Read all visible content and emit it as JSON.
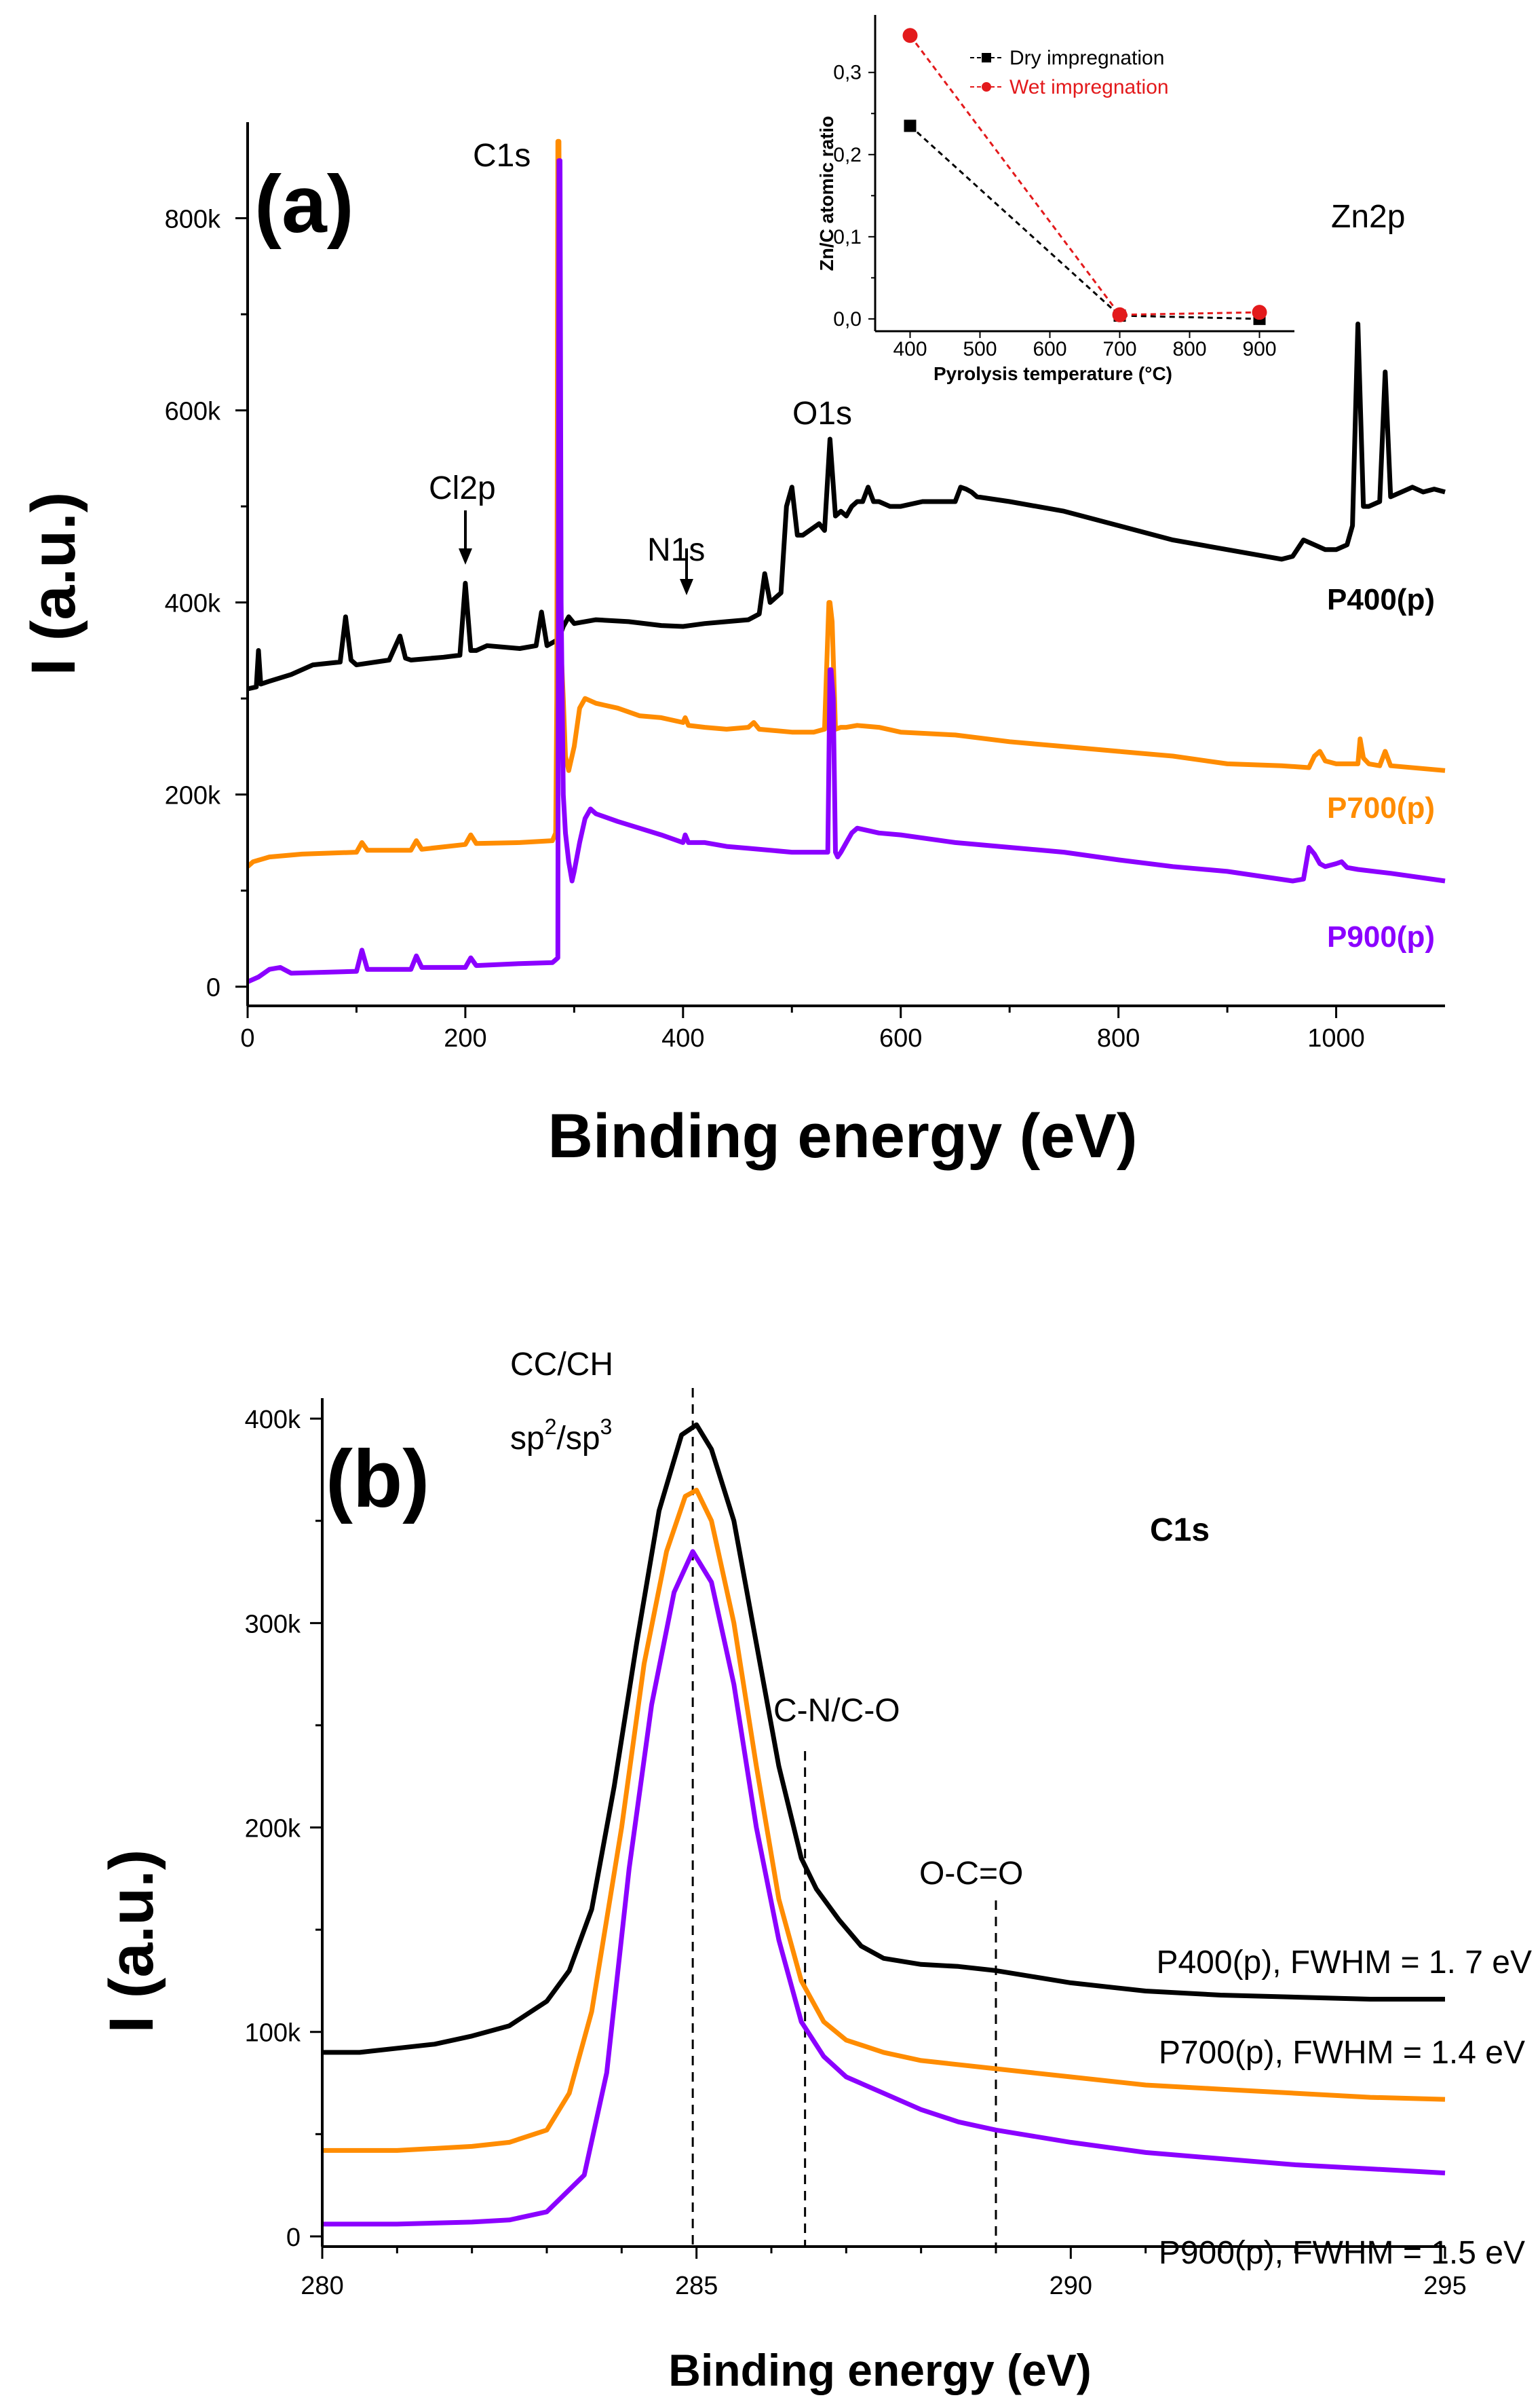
{
  "colors": {
    "p400": "#000000",
    "p700": "#FF8C00",
    "p900": "#8B00FF",
    "wet": "#E31A1C",
    "dry": "#000000"
  },
  "chart_data": [
    {
      "type": "line",
      "panel_label": "(a)",
      "xlabel": "Binding energy (eV)",
      "ylabel": "I (a.u.)",
      "xlim": [
        0,
        1100
      ],
      "ylim": [
        -20000,
        900000
      ],
      "xticks": [
        0,
        200,
        400,
        600,
        800,
        1000
      ],
      "xtick_labels": [
        "0",
        "200",
        "400",
        "600",
        "800",
        "1000"
      ],
      "yticks": [
        0,
        200000,
        400000,
        600000,
        800000
      ],
      "ytick_labels": [
        "0",
        "200k",
        "400k",
        "600k",
        "800k"
      ],
      "annotations": {
        "c1s": "C1s",
        "cl2p": "Cl2p",
        "n1s": "N1s",
        "o1s": "O1s",
        "zn2p": "Zn2p"
      },
      "series": [
        {
          "name": "P400(p)",
          "color": "#000000",
          "x": [
            0,
            8,
            10,
            12,
            20,
            40,
            60,
            85,
            90,
            95,
            100,
            130,
            140,
            145,
            150,
            180,
            195,
            200,
            205,
            210,
            220,
            250,
            265,
            270,
            275,
            283,
            285,
            290,
            295,
            300,
            320,
            350,
            380,
            400,
            420,
            440,
            460,
            470,
            475,
            480,
            490,
            495,
            500,
            505,
            510,
            520,
            525,
            530,
            535,
            540,
            545,
            550,
            555,
            560,
            565,
            570,
            575,
            580,
            590,
            600,
            620,
            650,
            655,
            660,
            665,
            670,
            700,
            750,
            800,
            850,
            900,
            950,
            960,
            970,
            980,
            990,
            1000,
            1010,
            1015,
            1020,
            1025,
            1030,
            1040,
            1045,
            1050,
            1060,
            1070,
            1080,
            1090,
            1100
          ],
          "y": [
            310000,
            312000,
            350000,
            315000,
            318000,
            325000,
            335000,
            338000,
            385000,
            340000,
            335000,
            340000,
            365000,
            342000,
            340000,
            343000,
            345000,
            420000,
            350000,
            350000,
            355000,
            352000,
            355000,
            390000,
            355000,
            360000,
            360000,
            375000,
            385000,
            378000,
            382000,
            380000,
            376000,
            375000,
            378000,
            380000,
            382000,
            388000,
            430000,
            400000,
            410000,
            500000,
            520000,
            470000,
            470000,
            478000,
            482000,
            475000,
            570000,
            490000,
            495000,
            490000,
            500000,
            505000,
            505000,
            520000,
            505000,
            505000,
            500000,
            500000,
            505000,
            505000,
            520000,
            518000,
            515000,
            510000,
            505000,
            495000,
            480000,
            465000,
            455000,
            445000,
            448000,
            465000,
            460000,
            455000,
            455000,
            460000,
            480000,
            690000,
            500000,
            500000,
            505000,
            640000,
            510000,
            515000,
            520000,
            515000,
            518000,
            515000
          ]
        },
        {
          "name": "P700(p)",
          "color": "#FF8C00",
          "x": [
            0,
            5,
            20,
            50,
            100,
            105,
            110,
            150,
            155,
            160,
            200,
            205,
            210,
            250,
            280,
            283,
            284,
            285,
            286,
            288,
            290,
            292,
            295,
            300,
            305,
            310,
            320,
            340,
            360,
            380,
            400,
            402,
            405,
            420,
            440,
            460,
            465,
            470,
            500,
            520,
            530,
            534,
            535,
            537,
            540,
            545,
            550,
            560,
            580,
            600,
            650,
            700,
            750,
            800,
            850,
            900,
            950,
            975,
            980,
            985,
            990,
            1000,
            1010,
            1020,
            1022,
            1025,
            1030,
            1040,
            1045,
            1050,
            1100
          ],
          "y": [
            125000,
            130000,
            135000,
            138000,
            140000,
            150000,
            142000,
            142000,
            152000,
            143000,
            148000,
            158000,
            149000,
            150000,
            152000,
            160000,
            300000,
            880000,
            880000,
            350000,
            300000,
            240000,
            225000,
            250000,
            290000,
            300000,
            295000,
            290000,
            282000,
            280000,
            275000,
            280000,
            272000,
            270000,
            268000,
            270000,
            275000,
            268000,
            265000,
            265000,
            268000,
            400000,
            400000,
            380000,
            268000,
            270000,
            270000,
            272000,
            270000,
            265000,
            262000,
            255000,
            250000,
            245000,
            240000,
            232000,
            230000,
            228000,
            240000,
            245000,
            235000,
            232000,
            232000,
            232000,
            258000,
            238000,
            232000,
            230000,
            245000,
            230000,
            225000
          ]
        },
        {
          "name": "P900(p)",
          "color": "#8B00FF",
          "x": [
            0,
            10,
            20,
            30,
            40,
            100,
            105,
            110,
            150,
            155,
            160,
            200,
            205,
            210,
            250,
            280,
            283,
            285,
            286,
            287,
            288,
            290,
            292,
            295,
            298,
            300,
            305,
            310,
            315,
            320,
            340,
            360,
            380,
            400,
            402,
            405,
            420,
            440,
            460,
            500,
            520,
            530,
            533,
            535,
            536,
            538,
            540,
            542,
            545,
            550,
            555,
            560,
            580,
            600,
            650,
            700,
            750,
            800,
            850,
            900,
            960,
            970,
            975,
            980,
            985,
            990,
            1000,
            1005,
            1010,
            1020,
            1050,
            1100
          ],
          "y": [
            5000,
            10000,
            18000,
            20000,
            14000,
            16000,
            38000,
            18000,
            18000,
            32000,
            20000,
            20000,
            30000,
            22000,
            24000,
            25000,
            28000,
            30000,
            860000,
            860000,
            400000,
            200000,
            160000,
            130000,
            110000,
            120000,
            150000,
            175000,
            185000,
            180000,
            172000,
            165000,
            158000,
            150000,
            158000,
            150000,
            150000,
            146000,
            144000,
            140000,
            140000,
            140000,
            140000,
            330000,
            330000,
            300000,
            140000,
            135000,
            140000,
            150000,
            160000,
            165000,
            160000,
            158000,
            150000,
            145000,
            140000,
            132000,
            125000,
            120000,
            110000,
            112000,
            145000,
            138000,
            128000,
            125000,
            128000,
            130000,
            124000,
            122000,
            118000,
            110000
          ]
        }
      ],
      "labels": [
        "P400(p)",
        "P700(p)",
        "P900(p)"
      ]
    },
    {
      "type": "line",
      "panel_label": "(b)",
      "title": "C1s",
      "xlabel": "Binding energy (eV)",
      "ylabel": "I (a.u.)",
      "xlim": [
        280,
        295
      ],
      "ylim": [
        -5000,
        410000
      ],
      "xticks": [
        280,
        285,
        290,
        295
      ],
      "xtick_labels": [
        "280",
        "285",
        "290",
        "295"
      ],
      "yticks": [
        0,
        100000,
        200000,
        300000,
        400000
      ],
      "ytick_labels": [
        "0",
        "100k",
        "200k",
        "300k",
        "400k"
      ],
      "annotations": {
        "ccch_line1": "CC/CH",
        "ccch_sp2": "sp",
        "ccch_sup2": "2",
        "ccch_slash": "/sp",
        "ccch_sup3": "3",
        "cn_co": "C-N/C-O",
        "oco": "O-C=O"
      },
      "reference_lines_ev": [
        284.95,
        286.45,
        289.0
      ],
      "series": [
        {
          "name": "P400(p), FWHM = 1. 7 eV",
          "color": "#000000",
          "x": [
            280,
            280.5,
            281,
            281.5,
            282,
            282.5,
            283,
            283.3,
            283.6,
            283.9,
            284.2,
            284.5,
            284.8,
            285,
            285.2,
            285.5,
            285.8,
            286.1,
            286.4,
            286.6,
            286.9,
            287.2,
            287.5,
            288,
            288.5,
            289,
            289.5,
            290,
            291,
            292,
            293,
            294,
            295
          ],
          "y": [
            90000,
            90000,
            92000,
            94000,
            98000,
            103000,
            115000,
            130000,
            160000,
            220000,
            290000,
            355000,
            392000,
            397000,
            385000,
            350000,
            290000,
            230000,
            185000,
            170000,
            155000,
            142000,
            136000,
            133000,
            132000,
            130000,
            127000,
            124000,
            120000,
            118000,
            117000,
            116000,
            116000
          ]
        },
        {
          "name": "P700(p), FWHM = 1.4 eV",
          "color": "#FF8C00",
          "x": [
            280,
            281,
            282,
            282.5,
            283,
            283.3,
            283.6,
            284,
            284.3,
            284.6,
            284.85,
            285,
            285.2,
            285.5,
            285.8,
            286.1,
            286.4,
            286.7,
            287,
            287.5,
            288,
            289,
            290,
            291,
            292,
            293,
            294,
            295
          ],
          "y": [
            42000,
            42000,
            44000,
            46000,
            52000,
            70000,
            110000,
            200000,
            280000,
            335000,
            362000,
            365000,
            350000,
            300000,
            230000,
            165000,
            125000,
            105000,
            96000,
            90000,
            86000,
            82000,
            78000,
            74000,
            72000,
            70000,
            68000,
            67000
          ]
        },
        {
          "name": "P900(p), FWHM = 1.5 eV",
          "color": "#8B00FF",
          "x": [
            280,
            281,
            282,
            282.5,
            283,
            283.5,
            283.8,
            284.1,
            284.4,
            284.7,
            284.95,
            285.2,
            285.5,
            285.8,
            286.1,
            286.4,
            286.7,
            287,
            287.5,
            288,
            288.5,
            289,
            290,
            291,
            292,
            293,
            294,
            295
          ],
          "y": [
            6000,
            6000,
            7000,
            8000,
            12000,
            30000,
            80000,
            180000,
            260000,
            315000,
            335000,
            320000,
            270000,
            200000,
            145000,
            105000,
            88000,
            78000,
            70000,
            62000,
            56000,
            52000,
            46000,
            41000,
            38000,
            35000,
            33000,
            31000
          ]
        }
      ],
      "labels": [
        "P400(p), FWHM = 1. 7 eV",
        "P700(p), FWHM = 1.4 eV",
        "P900(p), FWHM = 1.5 eV"
      ]
    },
    {
      "type": "line",
      "panel_label": "inset",
      "xlabel": "Pyrolysis temperature (°C)",
      "ylabel": "Zn/C atomic ratio",
      "xlim": [
        350,
        950
      ],
      "ylim": [
        -0.015,
        0.37
      ],
      "xticks": [
        400,
        500,
        600,
        700,
        800,
        900
      ],
      "xtick_labels": [
        "400",
        "500",
        "600",
        "700",
        "800",
        "900"
      ],
      "yticks": [
        0.0,
        0.1,
        0.2,
        0.3
      ],
      "ytick_labels": [
        "0,0",
        "0,1",
        "0,2",
        "0,3"
      ],
      "series": [
        {
          "name": "Dry impregnation",
          "color": "#000000",
          "marker": "square",
          "x": [
            400,
            700,
            900
          ],
          "y": [
            0.235,
            0.004,
            0.0
          ]
        },
        {
          "name": "Wet impregnation",
          "color": "#E31A1C",
          "marker": "circle",
          "x": [
            400,
            700,
            900
          ],
          "y": [
            0.345,
            0.005,
            0.008
          ]
        }
      ],
      "legend": [
        "Dry impregnation",
        "Wet impregnation"
      ]
    }
  ]
}
